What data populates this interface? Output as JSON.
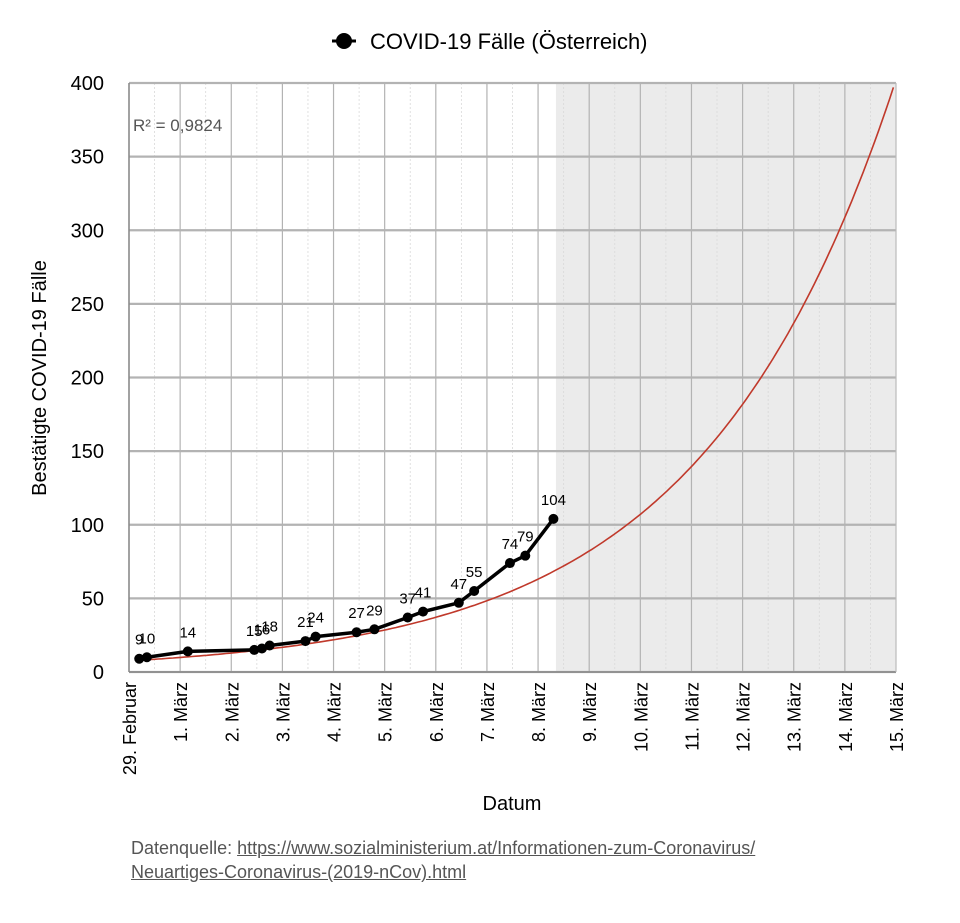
{
  "chart_data": {
    "type": "line",
    "legend": {
      "label": "COVID-19 Fälle (Österreich)",
      "position": "top"
    },
    "xlabel": "Datum",
    "ylabel": "Bestätigte COVID-19 Fälle",
    "ylim": [
      0,
      400
    ],
    "yticks": [
      0,
      50,
      100,
      150,
      200,
      250,
      300,
      350,
      400
    ],
    "xlim": [
      0,
      15
    ],
    "xtick_labels": [
      "29. Februar",
      "1. März",
      "2. März",
      "3. März",
      "4. März",
      "5. März",
      "6. März",
      "7. März",
      "8. März",
      "9. März",
      "10. März",
      "11. März",
      "12. März",
      "13. März",
      "14. März",
      "15. März"
    ],
    "grid": true,
    "series": [
      {
        "name": "COVID-19 Fälle (Österreich)",
        "x": [
          0.2,
          0.35,
          1.15,
          2.45,
          2.6,
          2.75,
          3.45,
          3.65,
          4.45,
          4.8,
          5.45,
          5.75,
          6.45,
          6.75,
          7.45,
          7.75,
          8.3
        ],
        "values": [
          9,
          10,
          14,
          15,
          16,
          18,
          21,
          24,
          27,
          29,
          37,
          41,
          47,
          55,
          74,
          79,
          104
        ],
        "data_labels": [
          "9",
          "10",
          "14",
          "15",
          "16",
          "18",
          "21",
          "24",
          "27",
          "29",
          "37",
          "41",
          "47",
          "55",
          "74",
          "79",
          "104"
        ]
      }
    ],
    "trendline": {
      "type": "exponential-fit",
      "r_squared_label": "R² = 0,9824",
      "x_start": 0.2,
      "x_end": 14.95,
      "y_start": 8,
      "y_end": 397
    },
    "forecast_region": {
      "x_start": 8.35,
      "x_end": 15,
      "color": "#ebebeb"
    },
    "colors": {
      "series": "#000000",
      "trendline": "#c0392b",
      "grid": "#b3b3b3",
      "minor_grid": "#d9d9d9"
    }
  },
  "source": {
    "prefix": "Datenquelle: ",
    "url_line1": "https://www.sozialministerium.at/Informationen-zum-Coronavirus/",
    "url_line2": "Neuartiges-Coronavirus-(2019-nCov).html"
  }
}
